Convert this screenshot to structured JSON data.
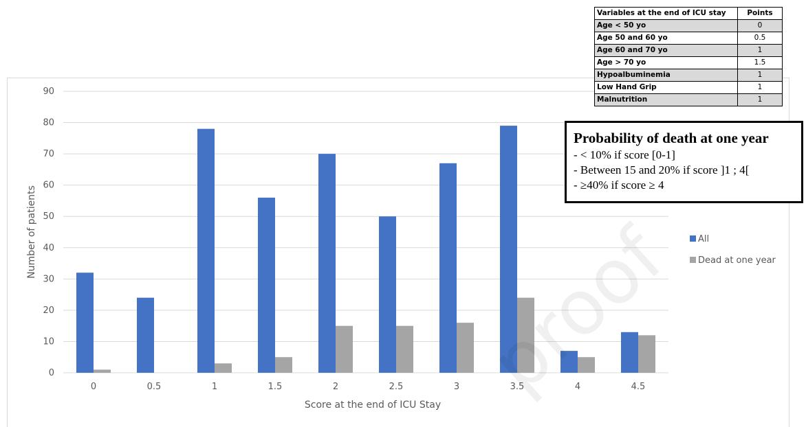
{
  "chart_data": {
    "type": "bar",
    "categories": [
      "0",
      "0.5",
      "1",
      "1.5",
      "2",
      "2.5",
      "3",
      "3.5",
      "4",
      "4.5"
    ],
    "series": [
      {
        "name": "All",
        "color": "#4472c4",
        "values": [
          32,
          24,
          78,
          56,
          70,
          50,
          67,
          79,
          7,
          13
        ]
      },
      {
        "name": "Dead at one year",
        "color": "#a5a5a5",
        "values": [
          1,
          0,
          3,
          5,
          15,
          15,
          16,
          24,
          5,
          12
        ]
      }
    ],
    "title": "",
    "xlabel": "Score at the end of ICU Stay",
    "ylabel": "Number of patients",
    "ylim": [
      0,
      90
    ],
    "yticks": [
      "0",
      "10",
      "20",
      "30",
      "40",
      "50",
      "60",
      "70",
      "80",
      "90"
    ],
    "grid": true,
    "legend_position": "right"
  },
  "score_table": {
    "headers": [
      "Variables at the end of ICU stay",
      "Points"
    ],
    "rows": [
      [
        "Age < 50 yo",
        "0"
      ],
      [
        "Age 50 and 60 yo",
        "0.5"
      ],
      [
        "Age 60 and 70 yo",
        "1"
      ],
      [
        "Age > 70 yo",
        "1.5"
      ],
      [
        "Hypoalbuminemia",
        "1"
      ],
      [
        "Low Hand Grip",
        "1"
      ],
      [
        "Malnutrition",
        "1"
      ]
    ]
  },
  "death_box": {
    "title": "Probability of death at one year",
    "lines": [
      "- < 10% if score [0-1]",
      "- Between 15 and 20% if score ]1 ; 4[",
      "- ≥40% if score ≥ 4"
    ]
  },
  "watermark": "proof"
}
